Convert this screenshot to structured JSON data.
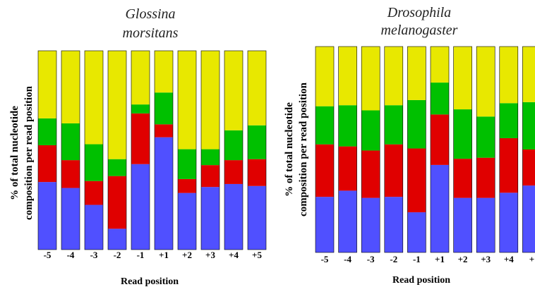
{
  "colors": {
    "blue": "#5050ff",
    "red": "#e00000",
    "green": "#00c000",
    "yellow": "#e8e800",
    "bar_edge": "#000000"
  },
  "chart_data": [
    {
      "type": "bar",
      "stacked": true,
      "title_line1": "Glossina",
      "title_line2": "morsitans",
      "xlabel": "Read position",
      "ylabel_line1": "% of total nucleotide",
      "ylabel_line2": "composition per read position",
      "categories": [
        "-5",
        "-4",
        "-3",
        "-2",
        "-1",
        "+1",
        "+2",
        "+3",
        "+4",
        "+5"
      ],
      "ylim": [
        0,
        100
      ],
      "series": [
        {
          "color": "blue",
          "values": [
            34,
            31,
            22.5,
            10.5,
            43,
            56.5,
            28.5,
            31.5,
            33,
            32
          ]
        },
        {
          "color": "red",
          "values": [
            18.5,
            14,
            12,
            26.5,
            25.5,
            6.5,
            7,
            11,
            12,
            13.5
          ]
        },
        {
          "color": "green",
          "values": [
            13.5,
            18.5,
            18.5,
            8.5,
            4.5,
            16,
            15,
            8,
            15,
            17
          ]
        },
        {
          "color": "yellow",
          "values": [
            34,
            36.5,
            47,
            54.5,
            27,
            21,
            49.5,
            49.5,
            40,
            37.5
          ]
        }
      ]
    },
    {
      "type": "bar",
      "stacked": true,
      "title_line1": "Drosophila",
      "title_line2": "melanogaster",
      "xlabel": "Read position",
      "ylabel_line1": "% of total nucleotide",
      "ylabel_line2": "composition per read position",
      "categories": [
        "-5",
        "-4",
        "-3",
        "-2",
        "-1",
        "+1",
        "+2",
        "+3",
        "+4",
        "+"
      ],
      "ylim": [
        0,
        100
      ],
      "series": [
        {
          "color": "blue",
          "values": [
            27,
            30,
            26.5,
            27,
            19.5,
            42.5,
            26.5,
            26.5,
            29,
            32.5
          ]
        },
        {
          "color": "red",
          "values": [
            25.5,
            21.5,
            23,
            25.5,
            31,
            24.5,
            19,
            19.5,
            26.5,
            17.5
          ]
        },
        {
          "color": "green",
          "values": [
            18.5,
            20,
            19.5,
            19,
            23.5,
            15.5,
            24,
            20,
            17,
            23
          ]
        },
        {
          "color": "yellow",
          "values": [
            29,
            28.5,
            31,
            28.5,
            26,
            17.5,
            30.5,
            34,
            27.5,
            27
          ]
        }
      ]
    }
  ]
}
